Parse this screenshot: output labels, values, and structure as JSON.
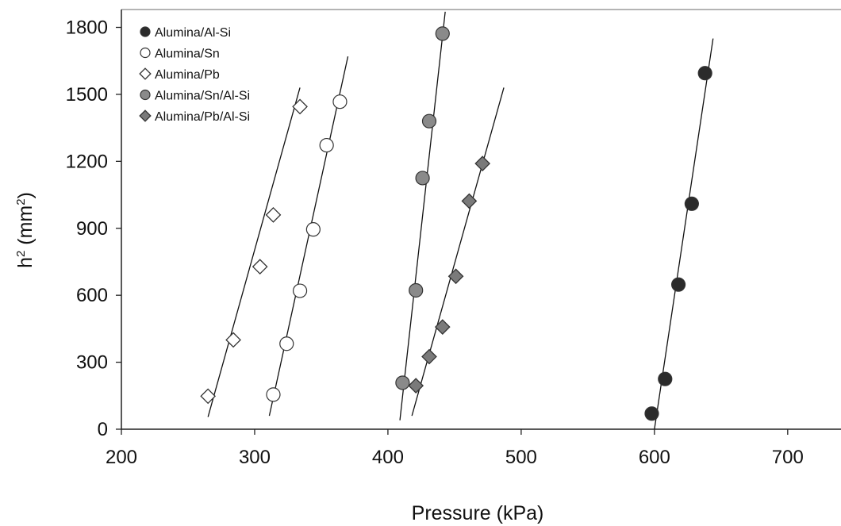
{
  "chart_data": {
    "type": "scatter",
    "title": "",
    "xlabel": "Pressure (kPa)",
    "ylabel_base": "h",
    "ylabel_sup": "2",
    "ylabel_unit": " (mm",
    "ylabel_unit_sup": "2",
    "ylabel_close": ")",
    "xlim": [
      200,
      740
    ],
    "ylim": [
      0,
      1880
    ],
    "xticks": [
      200,
      300,
      400,
      500,
      600,
      700
    ],
    "yticks": [
      0,
      300,
      600,
      900,
      1200,
      1500,
      1800
    ],
    "grid": false,
    "legend_position": "top-left",
    "series": [
      {
        "name": "Alumina/Al-Si",
        "marker": "circle",
        "fill": "#2b2b2b",
        "points": [
          [
            598,
            70
          ],
          [
            608,
            225
          ],
          [
            618,
            648
          ],
          [
            628,
            1010
          ],
          [
            638,
            1595
          ]
        ],
        "fit": [
          [
            600,
            0
          ],
          [
            644,
            1750
          ]
        ]
      },
      {
        "name": "Alumina/Sn",
        "marker": "circle",
        "fill": "#ffffff",
        "points": [
          [
            314,
            155
          ],
          [
            324,
            383
          ],
          [
            334,
            620
          ],
          [
            344,
            895
          ],
          [
            354,
            1272
          ],
          [
            364,
            1467
          ]
        ],
        "fit": [
          [
            311,
            60
          ],
          [
            370,
            1670
          ]
        ]
      },
      {
        "name": "Alumina/Pb",
        "marker": "diamond",
        "fill": "#ffffff",
        "points": [
          [
            265,
            148
          ],
          [
            284,
            400
          ],
          [
            304,
            728
          ],
          [
            314,
            960
          ],
          [
            334,
            1445
          ]
        ],
        "fit": [
          [
            265,
            55
          ],
          [
            334,
            1530
          ]
        ]
      },
      {
        "name": "Alumina/Sn/Al-Si",
        "marker": "circle",
        "fill": "#8a8a8a",
        "points": [
          [
            411,
            208
          ],
          [
            421,
            622
          ],
          [
            426,
            1125
          ],
          [
            431,
            1380
          ],
          [
            441,
            1772
          ]
        ],
        "fit": [
          [
            409,
            40
          ],
          [
            443,
            1870
          ]
        ]
      },
      {
        "name": "Alumina/Pb/Al-Si",
        "marker": "diamond",
        "fill": "#7a7a7a",
        "points": [
          [
            421,
            195
          ],
          [
            431,
            325
          ],
          [
            441,
            458
          ],
          [
            451,
            685
          ],
          [
            461,
            1022
          ],
          [
            471,
            1190
          ]
        ],
        "fit": [
          [
            418,
            60
          ],
          [
            487,
            1530
          ]
        ]
      }
    ]
  }
}
